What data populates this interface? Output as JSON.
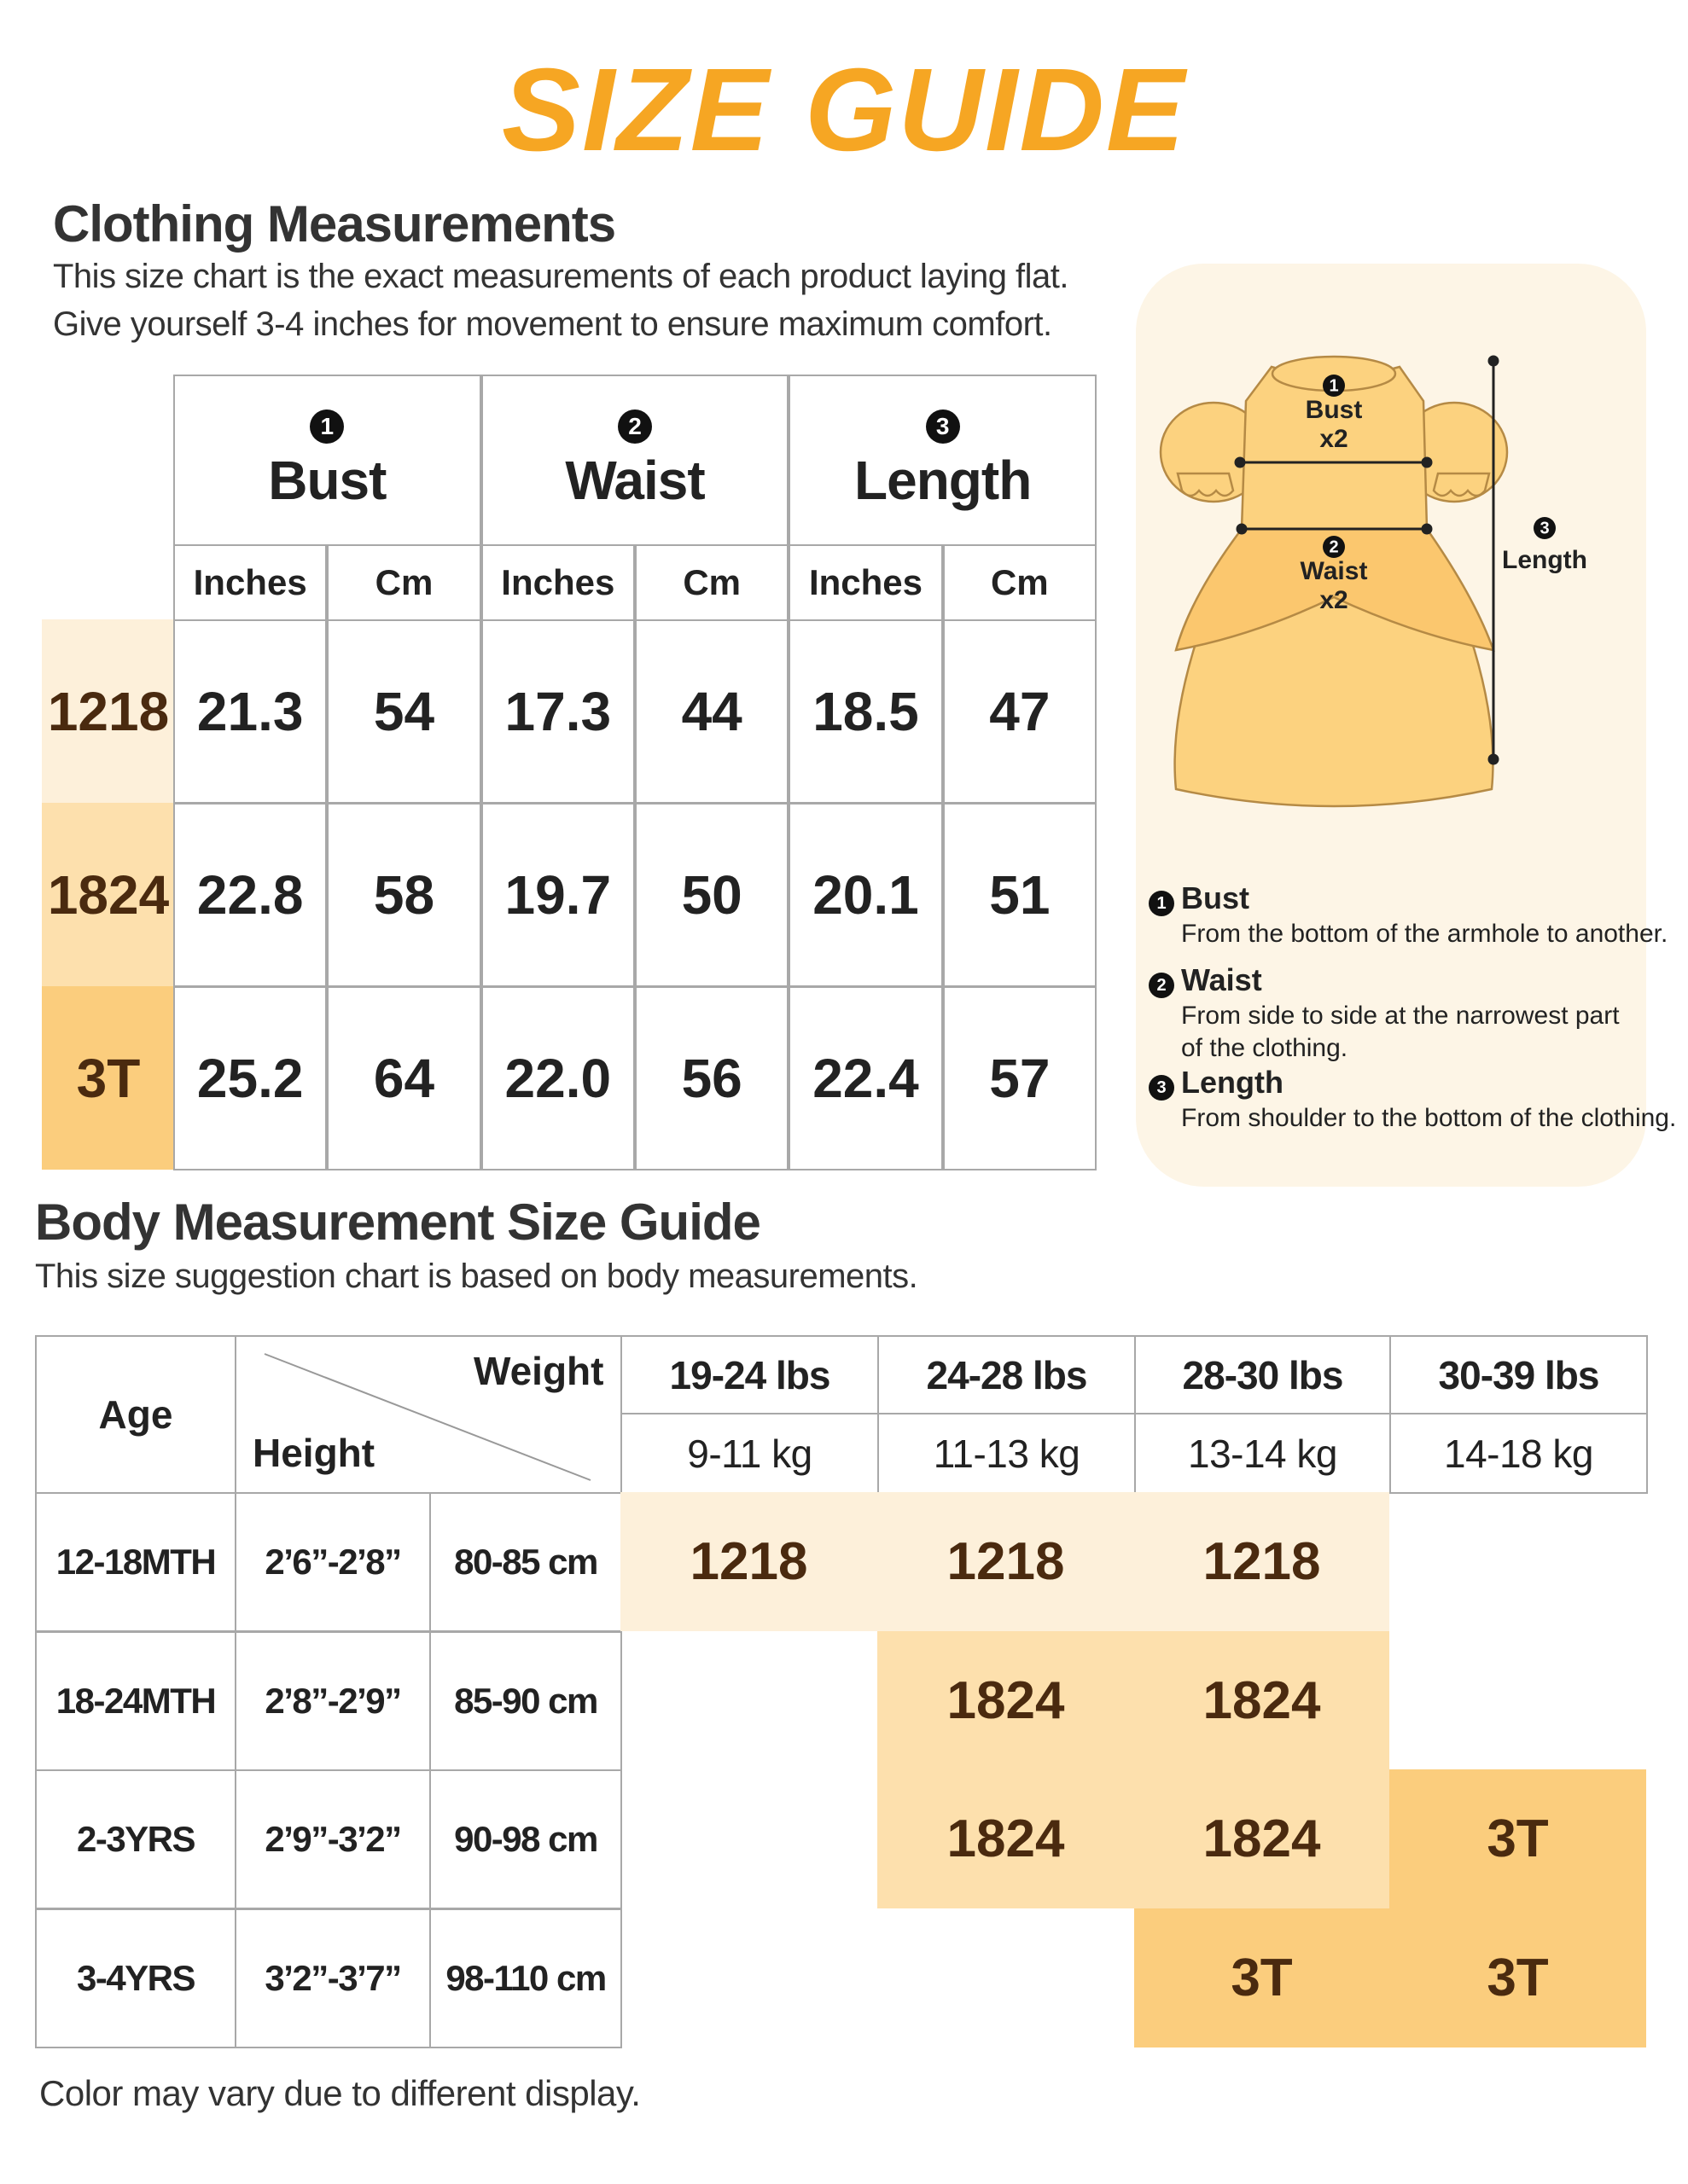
{
  "header": {
    "title": "SIZE GUIDE"
  },
  "clothing": {
    "title": "Clothing Measurements",
    "description": [
      "This size chart is the exact measurements of each product laying flat.",
      "Give yourself 3-4 inches for movement to ensure maximum comfort."
    ],
    "table": {
      "measures": [
        {
          "number": "1",
          "name": "Bust",
          "units": [
            "Inches",
            "Cm"
          ]
        },
        {
          "number": "2",
          "name": "Waist",
          "units": [
            "Inches",
            "Cm"
          ]
        },
        {
          "number": "3",
          "name": "Length",
          "units": [
            "Inches",
            "Cm"
          ]
        }
      ],
      "rows": [
        {
          "size": "1218",
          "values": [
            "21.3",
            "54",
            "17.3",
            "44",
            "18.5",
            "47"
          ]
        },
        {
          "size": "1824",
          "values": [
            "22.8",
            "58",
            "19.7",
            "50",
            "20.1",
            "51"
          ]
        },
        {
          "size": "3T",
          "values": [
            "25.2",
            "64",
            "22.0",
            "56",
            "22.4",
            "57"
          ]
        }
      ]
    }
  },
  "diagram": {
    "labels": [
      {
        "number": "1",
        "text": "Bust",
        "multiplier": "x2"
      },
      {
        "number": "2",
        "text": "Waist",
        "multiplier": "x2"
      },
      {
        "number": "3",
        "text": "Length"
      }
    ],
    "definitions": [
      {
        "number": "1",
        "term": "Bust",
        "description": [
          "From the bottom of the armhole to another."
        ]
      },
      {
        "number": "2",
        "term": "Waist",
        "description": [
          "From side to side at the narrowest part",
          "of the clothing."
        ]
      },
      {
        "number": "3",
        "term": "Length",
        "description": [
          "From shoulder to the bottom of the clothing."
        ]
      }
    ]
  },
  "body": {
    "title": "Body Measurement Size Guide",
    "description": "This size suggestion chart is based on body measurements.",
    "table": {
      "age_header": "Age",
      "weight_header": "Weight",
      "height_header": "Height",
      "weights": [
        {
          "lbs": "19-24 lbs",
          "kg": "9-11 kg"
        },
        {
          "lbs": "24-28 lbs",
          "kg": "11-13 kg"
        },
        {
          "lbs": "28-30 lbs",
          "kg": "13-14 kg"
        },
        {
          "lbs": "30-39 lbs",
          "kg": "14-18 kg"
        }
      ],
      "rows": [
        {
          "age": "12-18MTH",
          "height_ft": "2’6”-2’8”",
          "height_cm": "80-85 cm",
          "sizes": [
            "1218",
            "1218",
            "1218",
            null
          ]
        },
        {
          "age": "18-24MTH",
          "height_ft": "2’8”-2’9”",
          "height_cm": "85-90 cm",
          "sizes": [
            null,
            "1824",
            "1824",
            null
          ]
        },
        {
          "age": "2-3YRS",
          "height_ft": "2’9”-3’2”",
          "height_cm": "90-98 cm",
          "sizes": [
            null,
            "1824",
            "1824",
            "3T"
          ]
        },
        {
          "age": "3-4YRS",
          "height_ft": "3’2”-3’7”",
          "height_cm": "98-110 cm",
          "sizes": [
            null,
            null,
            "3T",
            "3T"
          ]
        }
      ]
    }
  },
  "footer": {
    "note": "Color may vary due to different display."
  }
}
